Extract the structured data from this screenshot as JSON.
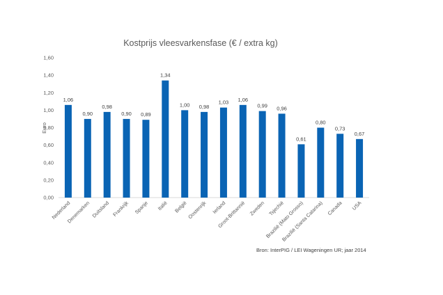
{
  "chart_data": {
    "type": "bar",
    "title": "Kostprijs vleesvarkensfase (€ / extra kg)",
    "ylabel": "Euro",
    "xlabel": "",
    "ylim": [
      0,
      1.6
    ],
    "yticks": [
      "0,00",
      "0,20",
      "0,40",
      "0,60",
      "0,80",
      "1,00",
      "1,20",
      "1,40",
      "1,60"
    ],
    "grid": false,
    "legend": "none",
    "bar_color": "#0a64b4",
    "categories": [
      "Nederland",
      "Denemarken",
      "Duitsland",
      "Frankrijk",
      "Spanje",
      "Italië",
      "België",
      "Oostenrijk",
      "Ierland",
      "Groot-Brittannië",
      "Zweden",
      "Tsjechië",
      "Brazilië (Mato Grosso)",
      "Brazilië (Santa Catarina)",
      "Canada",
      "USA"
    ],
    "values": [
      1.06,
      0.9,
      0.98,
      0.9,
      0.89,
      1.34,
      1.0,
      0.98,
      1.03,
      1.06,
      0.99,
      0.96,
      0.61,
      0.8,
      0.73,
      0.67
    ],
    "value_labels": [
      "1,06",
      "0,90",
      "0,98",
      "0,90",
      "0,89",
      "1,34",
      "1,00",
      "0,98",
      "1,03",
      "1,06",
      "0,99",
      "0,96",
      "0,61",
      "0,80",
      "0,73",
      "0,67"
    ]
  },
  "source_note": "Bron: InterPIG / LEI Wageningen UR; jaar 2014"
}
